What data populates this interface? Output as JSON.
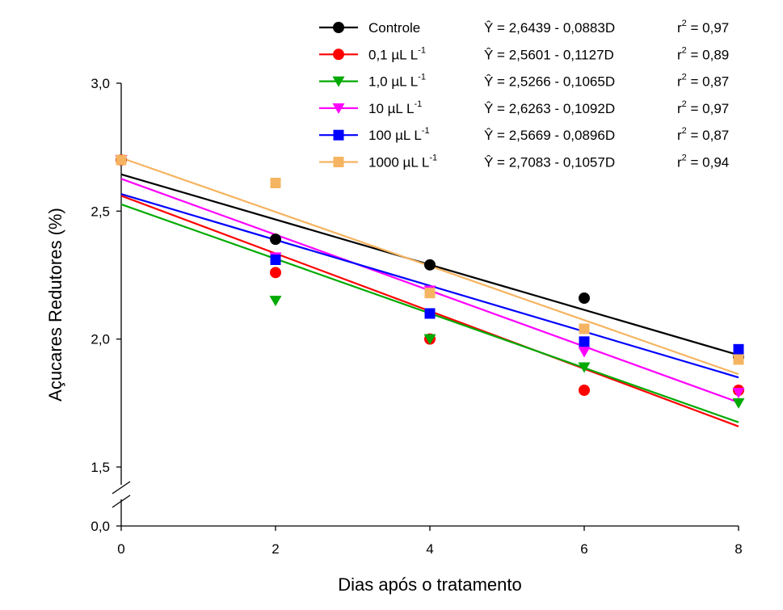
{
  "chart_data": {
    "type": "scatter",
    "xlabel": "Dias após o tratamento",
    "ylabel": "Açucares Redutores (%)",
    "x_ticks": [
      "0",
      "2",
      "4",
      "6",
      "8"
    ],
    "y_ticks": [
      "0,0",
      "1,5",
      "2,0",
      "2,5",
      "3,0"
    ],
    "xlim": [
      0,
      8
    ],
    "ylim": [
      1.5,
      3.0
    ],
    "y_axis_break": true,
    "y_axis_bottom_label": "0,0",
    "grid": false,
    "legend_position": "top-right",
    "x": [
      0,
      2,
      4,
      6,
      8
    ],
    "series": [
      {
        "name": "Controle",
        "name_unit": "",
        "name_sup": "",
        "color": "#000000",
        "marker": "circle",
        "values": [
          2.7,
          2.39,
          2.29,
          2.16,
          1.93
        ],
        "fit": {
          "intercept": 2.6439,
          "slope": -0.0883
        },
        "equation": "Ŷ = 2,6439 - 0,0883D",
        "r2_label": "r",
        "r2_sup": "2",
        "r2_value": " = 0,97"
      },
      {
        "name": "0,1 µL L",
        "name_unit": "",
        "name_sup": "-1",
        "color": "#ff0000",
        "marker": "circle",
        "values": [
          2.7,
          2.26,
          2.0,
          1.8,
          1.8
        ],
        "fit": {
          "intercept": 2.5601,
          "slope": -0.1127
        },
        "equation": "Ŷ = 2,5601 - 0,1127D",
        "r2_label": "r",
        "r2_sup": "2",
        "r2_value": " = 0,89"
      },
      {
        "name": "1,0 µL L",
        "name_unit": "",
        "name_sup": "-1",
        "color": "#00aa00",
        "marker": "triangle-down",
        "values": [
          2.7,
          2.15,
          2.0,
          1.89,
          1.75
        ],
        "fit": {
          "intercept": 2.5266,
          "slope": -0.1065
        },
        "equation": "Ŷ = 2,5266 - 0,1065D",
        "r2_label": "r",
        "r2_sup": "2",
        "r2_value": " = 0,87"
      },
      {
        "name": "10 µL L",
        "name_unit": "",
        "name_sup": "-1",
        "color": "#ff00ff",
        "marker": "triangle-down",
        "values": [
          2.7,
          2.32,
          2.19,
          1.95,
          1.79
        ],
        "fit": {
          "intercept": 2.6263,
          "slope": -0.1092
        },
        "equation": "Ŷ = 2,6263 - 0,1092D",
        "r2_label": "r",
        "r2_sup": "2",
        "r2_value": " = 0,97"
      },
      {
        "name": "100 µL L",
        "name_unit": "",
        "name_sup": "-1",
        "color": "#0000ff",
        "marker": "square",
        "values": [
          2.7,
          2.31,
          2.1,
          1.99,
          1.96
        ],
        "fit": {
          "intercept": 2.5669,
          "slope": -0.0896
        },
        "equation": "Ŷ = 2,5669 - 0,0896D",
        "r2_label": "r",
        "r2_sup": "2",
        "r2_value": " = 0,87"
      },
      {
        "name": "1000 µL L",
        "name_unit": "",
        "name_sup": "-1",
        "color": "#f5b461",
        "marker": "square",
        "values": [
          2.7,
          2.61,
          2.18,
          2.04,
          1.92
        ],
        "fit": {
          "intercept": 2.7083,
          "slope": -0.1057
        },
        "equation": "Ŷ = 2,7083 - 0,1057D",
        "r2_label": "r",
        "r2_sup": "2",
        "r2_value": " = 0,94"
      }
    ]
  }
}
